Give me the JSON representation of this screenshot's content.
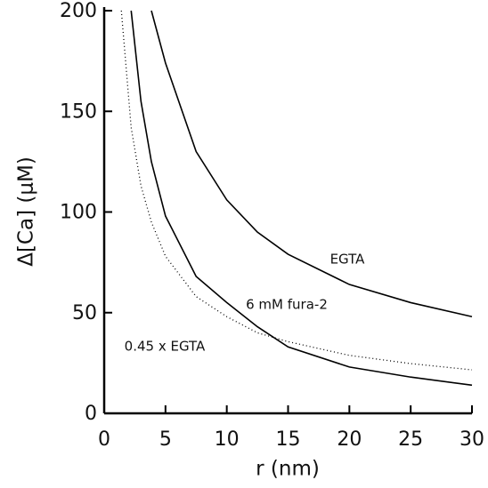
{
  "chart_data": {
    "type": "line",
    "x_label": "r (nm)",
    "y_label": "Δ[Ca] (μM)",
    "x": [
      1.4,
      2.2,
      3,
      3.85,
      5,
      7.5,
      10,
      12.5,
      15,
      20,
      25,
      30
    ],
    "series": [
      {
        "name": "EGTA",
        "color": "#000000",
        "style": "solid",
        "values": [
          null,
          null,
          null,
          200,
          174,
          130,
          106,
          90,
          79,
          64,
          55,
          48
        ]
      },
      {
        "name": "6 mM fura-2",
        "color": "#000000",
        "style": "solid",
        "values": [
          null,
          200,
          155,
          125,
          98,
          68,
          55,
          43,
          33,
          23,
          18,
          14
        ]
      },
      {
        "name": "0.45 x EGTA",
        "color": "#000000",
        "style": "dotted",
        "values": [
          200,
          142,
          113,
          95,
          78,
          58,
          48,
          40,
          35.6,
          28.8,
          24.7,
          21.6
        ]
      }
    ],
    "xlim": [
      0,
      30
    ],
    "ylim": [
      0,
      200
    ],
    "xticks": [
      0,
      5,
      10,
      15,
      20,
      25,
      30
    ],
    "yticks": [
      0,
      50,
      100,
      150,
      200
    ],
    "grid": false
  }
}
